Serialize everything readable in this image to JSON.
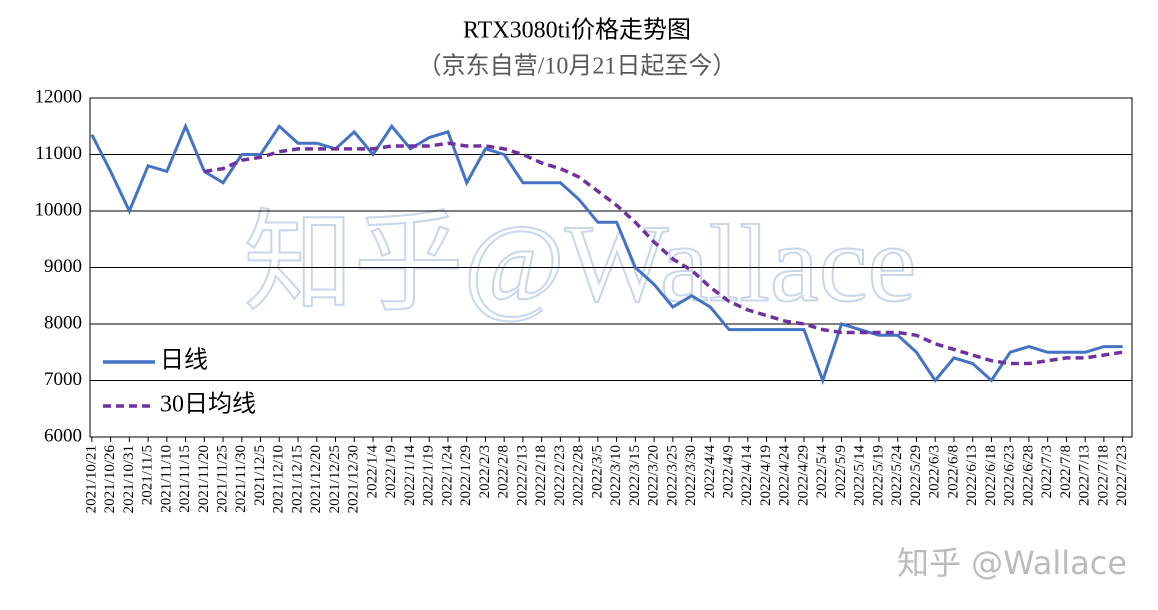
{
  "chart_data": {
    "type": "line",
    "title": "RTX3080ti价格走势图",
    "subtitle": "（京东自营/10月21日起至今）",
    "watermark": "知乎@Wallace",
    "credit": "知乎 @Wallace",
    "categories": [
      "2021/10/21",
      "2021/10/26",
      "2021/10/31",
      "2021/11/5",
      "2021/11/10",
      "2021/11/15",
      "2021/11/20",
      "2021/11/25",
      "2021/11/30",
      "2021/12/5",
      "2021/12/10",
      "2021/12/15",
      "2021/12/20",
      "2021/12/25",
      "2021/12/30",
      "2022/1/4",
      "2022/1/9",
      "2022/1/14",
      "2022/1/19",
      "2022/1/24",
      "2022/1/29",
      "2022/2/3",
      "2022/2/8",
      "2022/2/13",
      "2022/2/18",
      "2022/2/23",
      "2022/2/28",
      "2022/3/5",
      "2022/3/10",
      "2022/3/15",
      "2022/3/20",
      "2022/3/25",
      "2022/3/30",
      "2022/4/4",
      "2022/4/9",
      "2022/4/14",
      "2022/4/19",
      "2022/4/24",
      "2022/4/29",
      "2022/5/4",
      "2022/5/9",
      "2022/5/14",
      "2022/5/19",
      "2022/5/24",
      "2022/5/29",
      "2022/6/3",
      "2022/6/8",
      "2022/6/13",
      "2022/6/18",
      "2022/6/23",
      "2022/6/28",
      "2022/7/3",
      "2022/7/8",
      "2022/7/13",
      "2022/7/18",
      "2022/7/23"
    ],
    "series": [
      {
        "name": "日线",
        "color": "#4472c4",
        "dash": false,
        "values": [
          11350,
          10700,
          10000,
          10800,
          10700,
          11500,
          10700,
          10500,
          11000,
          11000,
          11500,
          11200,
          11200,
          11100,
          11400,
          11000,
          11500,
          11100,
          11300,
          11400,
          10500,
          11100,
          11000,
          10500,
          10500,
          10500,
          10200,
          9800,
          9800,
          9000,
          8700,
          8300,
          8500,
          8300,
          7900,
          7900,
          7900,
          7900,
          7900,
          7000,
          8000,
          7900,
          7800,
          7800,
          7500,
          7000,
          7400,
          7300,
          7000,
          7500,
          7600,
          7500,
          7500,
          7500,
          7600,
          7600
        ]
      },
      {
        "name": "30日均线",
        "color": "#7030a0",
        "dash": true,
        "values": [
          null,
          null,
          null,
          null,
          null,
          null,
          10700,
          10750,
          10900,
          10950,
          11050,
          11100,
          11100,
          11100,
          11100,
          11100,
          11150,
          11150,
          11150,
          11200,
          11150,
          11150,
          11100,
          11000,
          10850,
          10750,
          10600,
          10350,
          10100,
          9800,
          9450,
          9150,
          8950,
          8650,
          8400,
          8250,
          8150,
          8050,
          8000,
          7900,
          7850,
          7850,
          7850,
          7850,
          7800,
          7650,
          7550,
          7450,
          7350,
          7300,
          7300,
          7350,
          7400,
          7400,
          7450,
          7500
        ]
      }
    ],
    "ylim": [
      6000,
      12000
    ],
    "yticks": [
      6000,
      7000,
      8000,
      9000,
      10000,
      11000,
      12000
    ],
    "grid": true,
    "legend": "lower left"
  }
}
